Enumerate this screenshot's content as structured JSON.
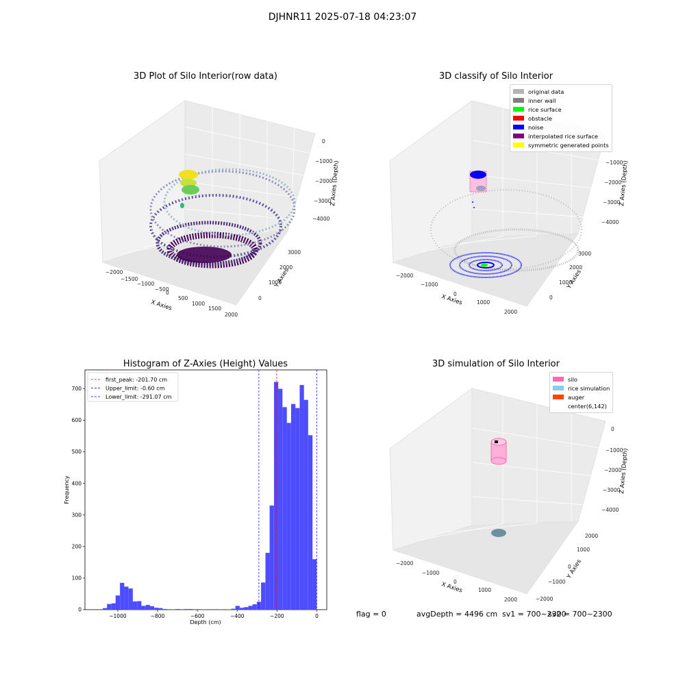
{
  "figure": {
    "title": "DJHNR11 2025-07-18 04:23:07"
  },
  "panel_raw": {
    "title": "3D Plot of Silo Interior(row data)",
    "xlabel": "X Axies",
    "ylabel": "Y Axies",
    "zlabel": "Z Axies (Depth)",
    "xticks": [
      "−2000",
      "−1500",
      "−1000",
      "−500",
      "0",
      "500",
      "1000",
      "1500",
      "2000"
    ],
    "yticks": [
      "0",
      "1000",
      "2000",
      "3000"
    ],
    "zticks": [
      "0",
      "−1000",
      "−2000",
      "−3000",
      "−4000"
    ]
  },
  "panel_classify": {
    "title": "3D classify of Silo Interior",
    "xlabel": "X Axies",
    "ylabel": "Y Axies",
    "zlabel": "Z Axies (Depth)",
    "xticks": [
      "−2000",
      "−1000",
      "0",
      "1000",
      "2000"
    ],
    "yticks": [
      "0",
      "1000",
      "2000",
      "3000"
    ],
    "zticks": [
      "−1000",
      "−2000",
      "−3000",
      "−4000"
    ],
    "legend": [
      {
        "label": "original data",
        "color": "#b4b4b4"
      },
      {
        "label": "inner wall",
        "color": "#808080"
      },
      {
        "label": "rice surface",
        "color": "#00ff00"
      },
      {
        "label": "obstacle",
        "color": "#ff0000"
      },
      {
        "label": "noise",
        "color": "#0000ff"
      },
      {
        "label": "interpolated rice surface",
        "color": "#800080"
      },
      {
        "label": "symmetric generated points",
        "color": "#ffff00"
      }
    ]
  },
  "panel_sim": {
    "title": "3D simulation of Silo Interior",
    "xlabel": "X Axies",
    "ylabel": "Y Axies",
    "zlabel": "Z Axies (Depth)",
    "xticks": [
      "−2000",
      "−1000",
      "0",
      "1000",
      "2000"
    ],
    "yticks": [
      "−2000",
      "−1000",
      "0",
      "1000",
      "2000"
    ],
    "zticks": [
      "0",
      "−1000",
      "−2000",
      "−3000",
      "−4000"
    ],
    "legend": [
      {
        "label": "silo",
        "color": "#ff69b4"
      },
      {
        "label": "rice simulation",
        "color": "#87ceeb"
      },
      {
        "label": "auger",
        "color": "#ff4500"
      },
      {
        "label": "center(6,142)",
        "color": "#ffffff"
      }
    ],
    "flag": "flag = 0",
    "avg_depth": "avgDepth = 4496 cm",
    "sv1": "sv1 = 700~2300",
    "sv2": "sv2 = 700~2300"
  },
  "chart_data": {
    "type": "bar",
    "title": "Histogram of Z-Axies (Height) Values",
    "xlabel": "Depth (cm)",
    "ylabel": "Frequency",
    "xlim": [
      -1165,
      50
    ],
    "ylim": [
      0,
      760
    ],
    "bar_color": "#4d4dff",
    "bin_width": 21.5,
    "bins": [
      [
        -1075,
        5
      ],
      [
        -1054,
        18
      ],
      [
        -1032,
        20
      ],
      [
        -1011,
        45
      ],
      [
        -989,
        85
      ],
      [
        -968,
        73
      ],
      [
        -946,
        67
      ],
      [
        -925,
        26
      ],
      [
        -903,
        27
      ],
      [
        -882,
        12
      ],
      [
        -860,
        15
      ],
      [
        -839,
        11
      ],
      [
        -817,
        6
      ],
      [
        -796,
        5
      ],
      [
        -774,
        2
      ],
      [
        -753,
        0
      ],
      [
        -731,
        1
      ],
      [
        -710,
        2
      ],
      [
        -688,
        0
      ],
      [
        -667,
        2
      ],
      [
        -645,
        2
      ],
      [
        -624,
        0
      ],
      [
        -602,
        0
      ],
      [
        -581,
        1
      ],
      [
        -559,
        0
      ],
      [
        -538,
        0
      ],
      [
        -516,
        0
      ],
      [
        -495,
        1
      ],
      [
        -473,
        0
      ],
      [
        -452,
        1
      ],
      [
        -430,
        3
      ],
      [
        -409,
        12
      ],
      [
        -387,
        6
      ],
      [
        -366,
        8
      ],
      [
        -344,
        12
      ],
      [
        -323,
        17
      ],
      [
        -301,
        25
      ],
      [
        -280,
        86
      ],
      [
        -258,
        180
      ],
      [
        -237,
        330
      ],
      [
        -215,
        722
      ],
      [
        -194,
        700
      ],
      [
        -172,
        642
      ],
      [
        -151,
        592
      ],
      [
        -129,
        652
      ],
      [
        -108,
        639
      ],
      [
        -86,
        712
      ],
      [
        -65,
        665
      ],
      [
        -43,
        553
      ],
      [
        -22,
        160
      ]
    ],
    "xticks": [
      -1000,
      -800,
      -600,
      -400,
      -200,
      0
    ],
    "xtick_labels": [
      "−1000",
      "−800",
      "−600",
      "−400",
      "−200",
      "0"
    ],
    "yticks": [
      0,
      100,
      200,
      300,
      400,
      500,
      600,
      700
    ],
    "vlines": [
      {
        "label": "first_peak: -201.70 cm",
        "x": -201.7,
        "color": "#ff0000"
      },
      {
        "label": "Upper_limit: -0.60 cm",
        "x": -0.6,
        "color": "#0000ff"
      },
      {
        "label": "Lower_limit: -291.07 cm",
        "x": -291.07,
        "color": "#0000ff"
      }
    ],
    "legend_position": "upper-left"
  }
}
